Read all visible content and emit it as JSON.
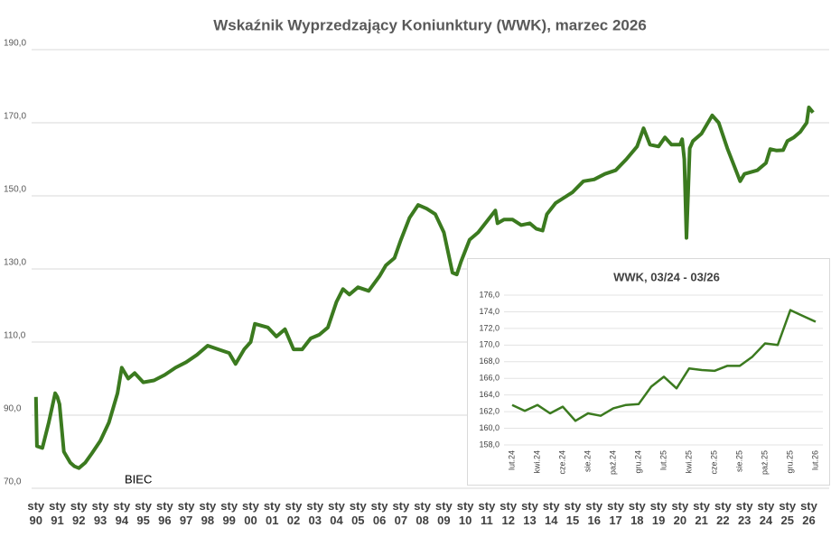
{
  "chart_data": [
    {
      "type": "line",
      "title": "Wskaźnik Wyprzedzający Koniunktury (WWK), marzec 2026",
      "annotation": "BIEC",
      "x": [
        1990.0,
        1990.05,
        1990.3,
        1990.6,
        1990.9,
        1991.0,
        1991.1,
        1991.3,
        1991.6,
        1991.8,
        1992.0,
        1992.3,
        1992.6,
        1993.0,
        1993.4,
        1993.8,
        1994.0,
        1994.3,
        1994.6,
        1995.0,
        1995.5,
        1996.0,
        1996.5,
        1997.0,
        1997.5,
        1998.0,
        1998.5,
        1999.0,
        1999.3,
        1999.7,
        2000.0,
        2000.2,
        2000.8,
        2001.2,
        2001.6,
        2002.0,
        2002.4,
        2002.8,
        2003.2,
        2003.6,
        2004.0,
        2004.3,
        2004.6,
        2005.0,
        2005.5,
        2006.0,
        2006.3,
        2006.7,
        2007.0,
        2007.4,
        2007.8,
        2008.2,
        2008.6,
        2009.0,
        2009.4,
        2009.6,
        2009.8,
        2010.2,
        2010.6,
        2011.0,
        2011.4,
        2011.5,
        2011.8,
        2012.2,
        2012.6,
        2013.0,
        2013.3,
        2013.6,
        2013.8,
        2014.2,
        2014.6,
        2015.0,
        2015.5,
        2016.0,
        2016.5,
        2017.0,
        2017.5,
        2018.0,
        2018.3,
        2018.6,
        2019.0,
        2019.3,
        2019.6,
        2020.0,
        2020.1,
        2020.2,
        2020.3,
        2020.45,
        2020.6,
        2021.0,
        2021.5,
        2021.8,
        2022.2,
        2022.6,
        2022.8,
        2023.0,
        2023.3,
        2023.6,
        2024.0,
        2024.2,
        2024.5,
        2024.8,
        2025.0,
        2025.3,
        2025.6,
        2025.9,
        2026.0,
        2026.2
      ],
      "series": [
        {
          "name": "WWK",
          "color": "#3b7a1f",
          "values": [
            95,
            81.5,
            81,
            88,
            96,
            95,
            93,
            80,
            77,
            76,
            75.5,
            77,
            79.5,
            83,
            88,
            96,
            103,
            100,
            101.5,
            99,
            99.5,
            101,
            103,
            104.5,
            106.5,
            109,
            108,
            107,
            104,
            108,
            110,
            115,
            114,
            111.5,
            113.5,
            108,
            108,
            111,
            112,
            114,
            121,
            124.5,
            123,
            125,
            124,
            128,
            131,
            133,
            138,
            144,
            147.5,
            146.5,
            145,
            140,
            129,
            128.5,
            132,
            138,
            140,
            143,
            146,
            142.5,
            143.5,
            143.5,
            142,
            142.5,
            141,
            140.5,
            145,
            148,
            149.5,
            151,
            154,
            154.5,
            156,
            157,
            160,
            163.5,
            168.5,
            164,
            163.5,
            166,
            164,
            164,
            165.5,
            160,
            138.5,
            163,
            165,
            167,
            172,
            170,
            163,
            157,
            154,
            156,
            156.5,
            157,
            159,
            162.8,
            162.4,
            162.5,
            165,
            166,
            167.5,
            170,
            174.2,
            172.8
          ]
        }
      ],
      "xlim": [
        1989.8,
        2026.4
      ],
      "xticks": [
        {
          "value": 1990,
          "label": "sty\n90"
        },
        {
          "value": 1991,
          "label": "sty\n91"
        },
        {
          "value": 1992,
          "label": "sty\n92"
        },
        {
          "value": 1993,
          "label": "sty\n93"
        },
        {
          "value": 1994,
          "label": "sty\n94"
        },
        {
          "value": 1995,
          "label": "sty\n95"
        },
        {
          "value": 1996,
          "label": "sty\n96"
        },
        {
          "value": 1997,
          "label": "sty\n97"
        },
        {
          "value": 1998,
          "label": "sty\n98"
        },
        {
          "value": 1999,
          "label": "sty\n99"
        },
        {
          "value": 2000,
          "label": "sty\n00"
        },
        {
          "value": 2001,
          "label": "sty\n01"
        },
        {
          "value": 2002,
          "label": "sty\n02"
        },
        {
          "value": 2003,
          "label": "sty\n03"
        },
        {
          "value": 2004,
          "label": "sty\n04"
        },
        {
          "value": 2005,
          "label": "sty\n05"
        },
        {
          "value": 2006,
          "label": "sty\n06"
        },
        {
          "value": 2007,
          "label": "sty\n07"
        },
        {
          "value": 2008,
          "label": "sty\n08"
        },
        {
          "value": 2009,
          "label": "sty\n09"
        },
        {
          "value": 2010,
          "label": "sty\n10"
        },
        {
          "value": 2011,
          "label": "sty\n11"
        },
        {
          "value": 2012,
          "label": "sty\n12"
        },
        {
          "value": 2013,
          "label": "sty\n13"
        },
        {
          "value": 2014,
          "label": "sty\n14"
        },
        {
          "value": 2015,
          "label": "sty\n15"
        },
        {
          "value": 2016,
          "label": "sty\n16"
        },
        {
          "value": 2017,
          "label": "sty\n17"
        },
        {
          "value": 2018,
          "label": "sty\n18"
        },
        {
          "value": 2019,
          "label": "sty\n19"
        },
        {
          "value": 2020,
          "label": "sty\n20"
        },
        {
          "value": 2021,
          "label": "sty\n21"
        },
        {
          "value": 2022,
          "label": "sty\n22"
        },
        {
          "value": 2023,
          "label": "sty\n23"
        },
        {
          "value": 2024,
          "label": "sty\n24"
        },
        {
          "value": 2025,
          "label": "sty\n25"
        },
        {
          "value": 2026,
          "label": "sty\n26"
        }
      ],
      "ylim": [
        70,
        190
      ],
      "yticks": [
        {
          "value": 70,
          "label": "70,0"
        },
        {
          "value": 90,
          "label": "90,0"
        },
        {
          "value": 110,
          "label": "110,0"
        },
        {
          "value": 130,
          "label": "130,0"
        },
        {
          "value": 150,
          "label": "150,0"
        },
        {
          "value": 170,
          "label": "170,0"
        },
        {
          "value": 190,
          "label": "190,0"
        }
      ],
      "grid": true
    },
    {
      "type": "line",
      "title": "WWK, 03/24 - 03/26",
      "categories": [
        "lut.24",
        null,
        "kwi.24",
        null,
        "cze.24",
        null,
        "sie.24",
        null,
        "paź.24",
        null,
        "gru.24",
        null,
        "lut.25",
        null,
        "kwi.25",
        null,
        "cze.25",
        null,
        "sie.25",
        null,
        "paź.25",
        null,
        "gru.25",
        null,
        "lut.26"
      ],
      "series": [
        {
          "name": "WWK",
          "color": "#3b7a1f",
          "values": [
            162.8,
            162.1,
            162.8,
            161.8,
            162.6,
            160.9,
            161.8,
            161.5,
            162.4,
            162.8,
            162.9,
            165.0,
            166.2,
            164.8,
            167.2,
            167.0,
            166.9,
            167.5,
            167.5,
            168.6,
            170.2,
            170.0,
            174.2,
            173.5,
            172.8
          ]
        }
      ],
      "ylim": [
        158,
        176
      ],
      "yticks": [
        {
          "value": 158,
          "label": "158,0"
        },
        {
          "value": 160,
          "label": "160,0"
        },
        {
          "value": 162,
          "label": "162,0"
        },
        {
          "value": 164,
          "label": "164,0"
        },
        {
          "value": 166,
          "label": "166,0"
        },
        {
          "value": 168,
          "label": "168,0"
        },
        {
          "value": 170,
          "label": "170,0"
        },
        {
          "value": 172,
          "label": "172,0"
        },
        {
          "value": 174,
          "label": "174,0"
        },
        {
          "value": 176,
          "label": "176,0"
        }
      ],
      "grid": true
    }
  ]
}
